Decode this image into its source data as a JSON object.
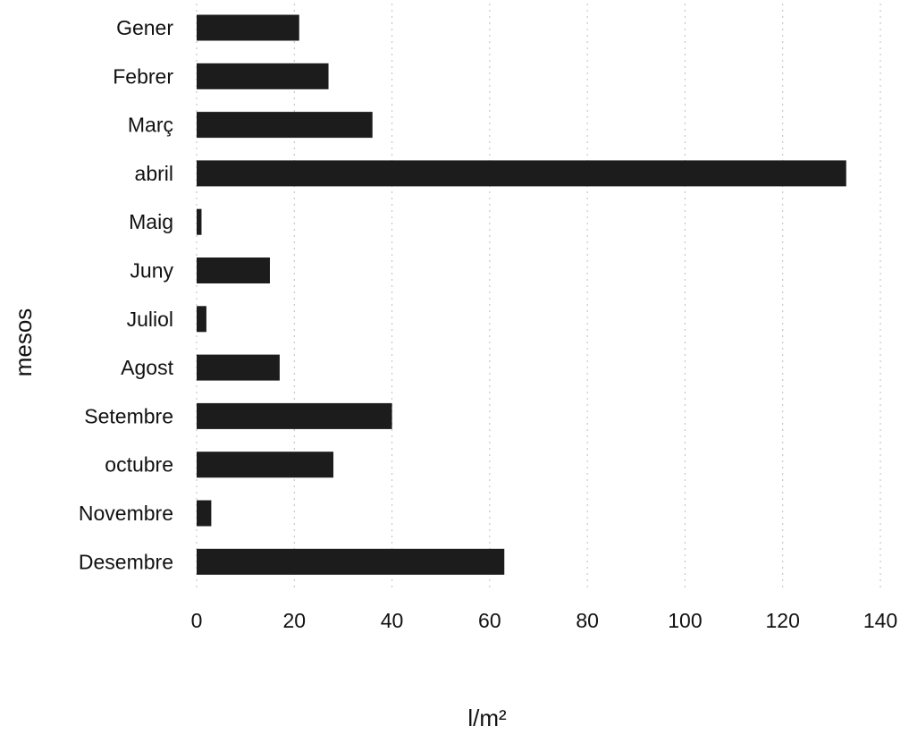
{
  "chart_data": {
    "type": "bar",
    "orientation": "horizontal",
    "title": "",
    "xlabel": "l/m²",
    "ylabel": "mesos",
    "categories": [
      "Gener",
      "Febrer",
      "Març",
      "abril",
      "Maig",
      "Juny",
      "Juliol",
      "Agost",
      "Setembre",
      "octubre",
      "Novembre",
      "Desembre"
    ],
    "values": [
      21,
      27,
      36,
      133,
      1,
      15,
      2,
      17,
      40,
      28,
      3,
      63
    ],
    "xlim": [
      0,
      140
    ],
    "xticks": [
      "0",
      "20",
      "40",
      "60",
      "80",
      "100",
      "120",
      "140"
    ],
    "grid": true,
    "legend": "none",
    "bar_color": "#1c1c1c"
  }
}
